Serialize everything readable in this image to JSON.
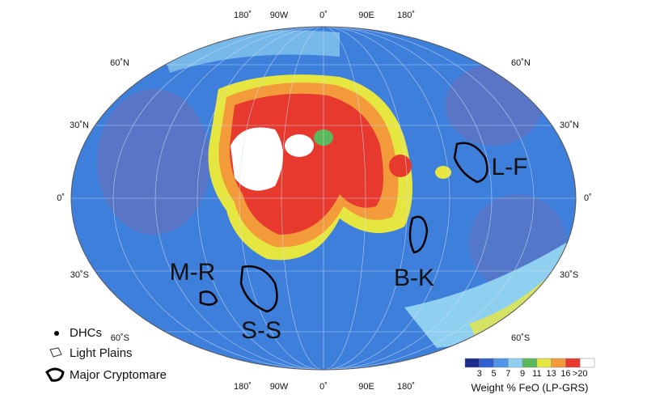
{
  "map": {
    "longitude_labels_top": [
      "180˚",
      "90W",
      "0˚",
      "90E",
      "180˚"
    ],
    "longitude_labels_bottom": [
      "180˚",
      "90W",
      "0˚",
      "90E",
      "180˚"
    ],
    "latitude_labels_left": [
      "60˚N",
      "30˚N",
      "0˚",
      "30˚S",
      "60˚S"
    ],
    "latitude_labels_right": [
      "60˚N",
      "30˚N",
      "0˚",
      "30˚S",
      "60˚S"
    ],
    "regions": [
      "L-F",
      "B-K",
      "M-R",
      "S-S"
    ]
  },
  "legend": {
    "items": [
      "DHCs",
      "Light Plains",
      "Major Cryptomare"
    ]
  },
  "colorbar": {
    "labels": [
      "3",
      "5",
      "7",
      "9",
      "11",
      "13",
      "16",
      ">20"
    ],
    "colors": [
      "#1c2d8c",
      "#2f5fd0",
      "#4f96e8",
      "#8fd0f0",
      "#5cb85c",
      "#e6e640",
      "#f39a3a",
      "#e8392e",
      "#ffffff"
    ],
    "title": "Weight % FeO (LP-GRS)"
  }
}
